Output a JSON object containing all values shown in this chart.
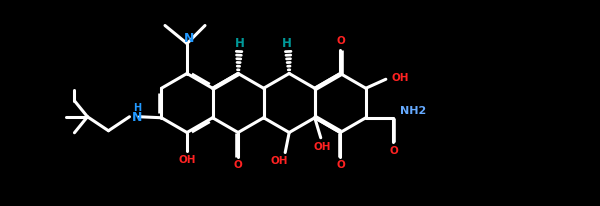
{
  "bg_color": "#000000",
  "bond_color": "#ffffff",
  "N_color": "#2299ff",
  "O_color": "#ff2222",
  "H_color": "#009999",
  "NH2_color": "#66aaff",
  "lw": 2.2,
  "dbl_off": 0.01,
  "fig_w": 6.0,
  "fig_h": 2.06,
  "dpi": 100,
  "xlim": [
    0.0,
    6.0
  ],
  "ylim": [
    0.0,
    2.06
  ]
}
